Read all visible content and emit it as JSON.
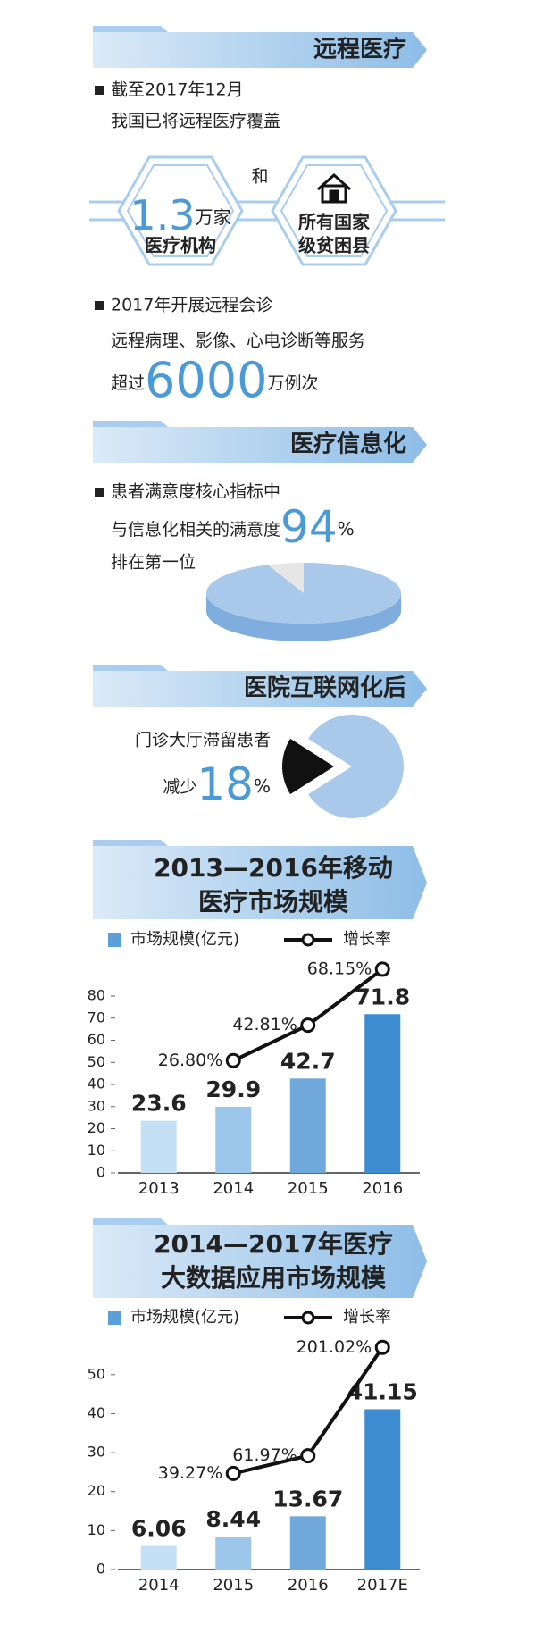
{
  "remote": {
    "title": "远程医疗",
    "line1": "截至2017年12月",
    "line2": "我国已将远程医疗覆盖",
    "and": "和",
    "hex1": {
      "number": "1.3",
      "unit": "万家",
      "label": "医疗机构"
    },
    "hex2": {
      "line1": "所有国家",
      "line2": "级贫困县"
    },
    "line3": "2017年开展远程会诊",
    "line4": "远程病理、影像、心电诊断等服务",
    "over": {
      "prefix": "超过",
      "number": "6000",
      "unit": "万例次"
    }
  },
  "info": {
    "title": "医疗信息化",
    "line1": "患者满意度核心指标中",
    "line2": "与信息化相关的满意度",
    "line3": "排在第一位"
  },
  "internet": {
    "title": "医院互联网化后",
    "line1": "门诊大厅滞留患者",
    "line2": "减少"
  },
  "chart_data": [
    {
      "type": "pie",
      "values": [
        94
      ],
      "unit": "%",
      "colors": [
        "#a9c9ea",
        "#e6e6e6"
      ],
      "3d": true
    },
    {
      "type": "pie",
      "values": [
        18
      ],
      "unit": "%",
      "colors": [
        "#111111",
        "#a9c9ea"
      ],
      "explode": true
    },
    {
      "type": "bar",
      "title": [
        "2013—2016年移动",
        "医疗市场规模"
      ],
      "categories": [
        "2013",
        "2014",
        "2015",
        "2016"
      ],
      "series": [
        {
          "name": "市场规模(亿元)",
          "color": "#5a9fd8",
          "colors": [
            "#c5e0f5",
            "#9cc7ea",
            "#6fa9dc",
            "#3d8bd0"
          ],
          "values": [
            23.6,
            29.9,
            42.7,
            71.8
          ]
        },
        {
          "name": "增长率",
          "type": "line",
          "axis": "y2",
          "color": "#111111",
          "values": [
            null,
            26.8,
            42.81,
            68.15
          ],
          "value_labels": [
            null,
            "26.80%",
            "42.81%",
            "68.15%"
          ]
        }
      ],
      "ylim": [
        0,
        80
      ],
      "yticks": [
        0,
        10,
        20,
        30,
        40,
        50,
        60,
        70,
        80
      ],
      "y2lim": [
        -24,
        56
      ]
    },
    {
      "type": "bar",
      "title": [
        "2014—2017年医疗",
        "大数据应用市场规模"
      ],
      "categories": [
        "2014",
        "2015",
        "2016",
        "2017E"
      ],
      "series": [
        {
          "name": "市场规模(亿元)",
          "color": "#5a9fd8",
          "colors": [
            "#c5e0f5",
            "#9cc7ea",
            "#6fa9dc",
            "#3d8bd0"
          ],
          "values": [
            6.06,
            8.44,
            13.67,
            41.15
          ]
        },
        {
          "name": "增长率",
          "type": "line",
          "axis": "y2",
          "color": "#111111",
          "values": [
            null,
            39.27,
            61.97,
            201.02
          ],
          "value_labels": [
            null,
            "39.27%",
            "61.97%",
            "201.02%"
          ]
        }
      ],
      "ylim": [
        0,
        55
      ],
      "yticks": [
        0,
        10,
        20,
        30,
        40,
        50
      ],
      "y2lim": [
        -84,
        191
      ]
    }
  ]
}
